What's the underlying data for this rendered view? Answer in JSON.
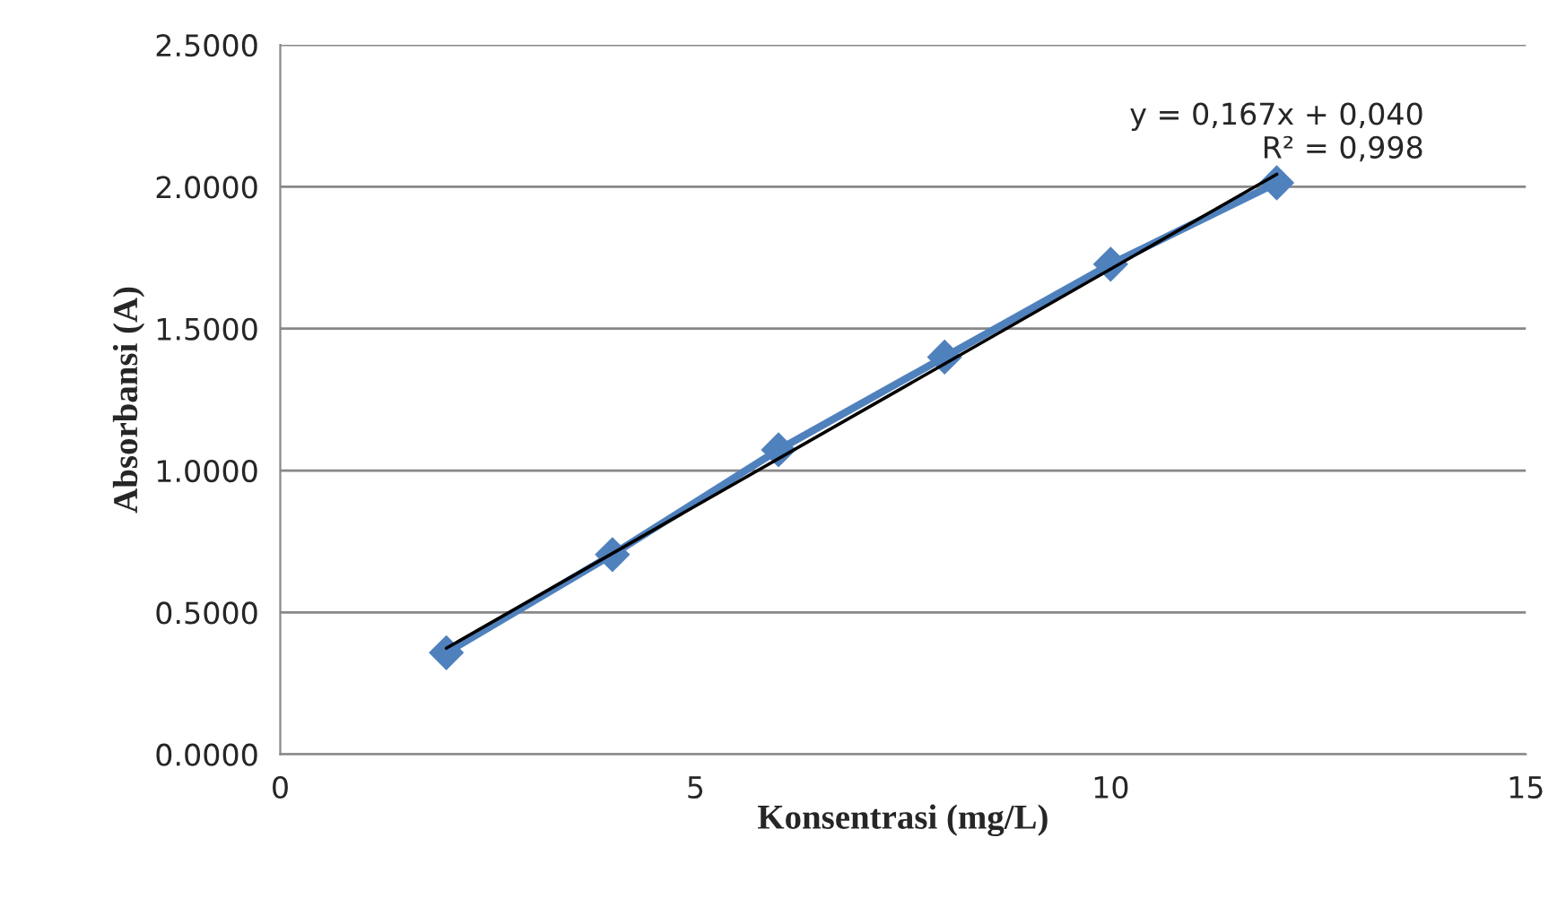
{
  "chart_data": {
    "type": "line",
    "xlabel": "Konsentrasi (mg/L)",
    "ylabel": "Absorbansi (A)",
    "x": [
      2,
      4,
      6,
      8,
      10,
      12
    ],
    "series": [
      {
        "color": "#4f81bd",
        "values": [
          0.358,
          0.704,
          1.073,
          1.4,
          1.727,
          2.014
        ],
        "marker": "diamond"
      },
      {
        "type": "line",
        "color": "#000000",
        "x": [
          2,
          12
        ],
        "values": [
          0.374,
          2.044
        ],
        "marker": "none"
      }
    ],
    "annotations": [
      {
        "text": "y = 0,167x + 0,040\nR² = 0,998",
        "x": 12,
        "y": 2.044
      }
    ],
    "xlim": [
      0,
      15
    ],
    "xticks": [
      0,
      5,
      10,
      15
    ],
    "ylim": [
      0,
      2.5
    ],
    "yticks": [
      {
        "value": 0,
        "label": "0.0000"
      },
      {
        "value": 0.5,
        "label": "0.5000"
      },
      {
        "value": 1,
        "label": "1.0000"
      },
      {
        "value": 1.5,
        "label": "1.5000"
      },
      {
        "value": 2,
        "label": "2.0000"
      },
      {
        "value": 2.5,
        "label": "2.5000"
      }
    ],
    "grid": "y",
    "legend": false
  }
}
